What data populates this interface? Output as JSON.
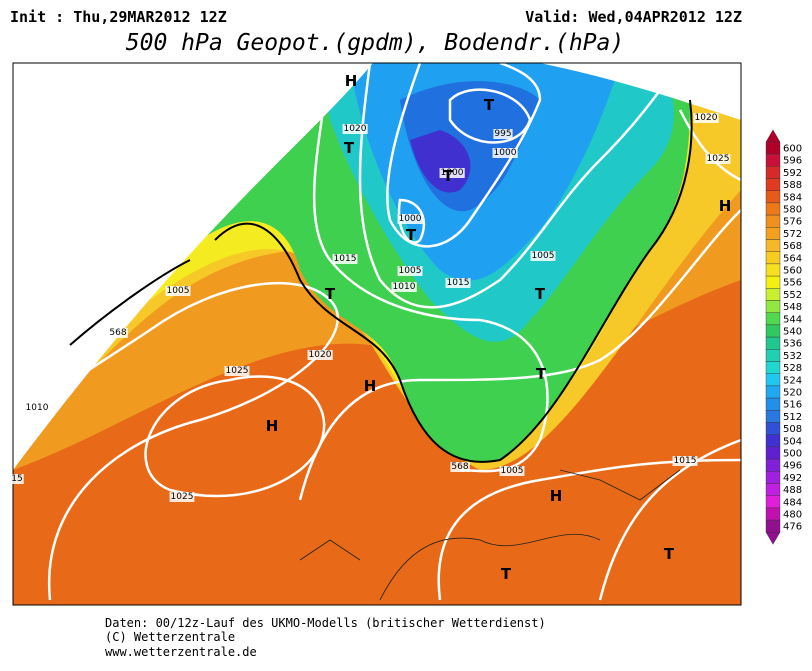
{
  "header": {
    "init": "Init : Thu,29MAR2012 12Z",
    "valid": "Valid: Wed,04APR2012 12Z",
    "title": "500 hPa Geopot.(gpdm), Bodendr.(hPa)"
  },
  "legend": {
    "ticks": [
      "600",
      "596",
      "592",
      "588",
      "584",
      "580",
      "576",
      "572",
      "568",
      "564",
      "560",
      "556",
      "552",
      "548",
      "544",
      "540",
      "536",
      "532",
      "528",
      "524",
      "520",
      "516",
      "512",
      "508",
      "504",
      "500",
      "496",
      "492",
      "488",
      "484",
      "480",
      "476"
    ],
    "colors": [
      "#b0002a",
      "#c8103a",
      "#d62a2a",
      "#e03a20",
      "#e65a1a",
      "#ec7a18",
      "#f09020",
      "#f2a020",
      "#f4b828",
      "#f6cc20",
      "#f8e020",
      "#f4f010",
      "#c8f030",
      "#90e840",
      "#50d850",
      "#30c860",
      "#20c890",
      "#20d0b0",
      "#20d8d0",
      "#20c8f0",
      "#20a8f0",
      "#2090e8",
      "#2878e0",
      "#3050d8",
      "#4030d0",
      "#6020d0",
      "#8020d8",
      "#a020e0",
      "#c020e0",
      "#e020d8",
      "#c010b0",
      "#901090"
    ]
  },
  "map": {
    "contour_labels": [
      "1020",
      "995",
      "1000",
      "1000",
      "1000",
      "1005",
      "1015",
      "1010",
      "1015",
      "1005",
      "1020",
      "1025",
      "1025",
      "1010",
      "1005",
      "1020",
      "1025",
      "1015",
      "1005",
      "15",
      "568",
      "568"
    ],
    "pressure_centers": [
      "H",
      "T",
      "T",
      "T",
      "T",
      "T",
      "T",
      "T",
      "H",
      "H",
      "H",
      "H",
      "T",
      "T"
    ]
  },
  "footer": {
    "lines": [
      "Daten: 00/12z-Lauf des UKMO-Modells (britischer Wetterdienst)",
      "(C) Wetterzentrale",
      "www.wetterzentrale.de"
    ]
  }
}
